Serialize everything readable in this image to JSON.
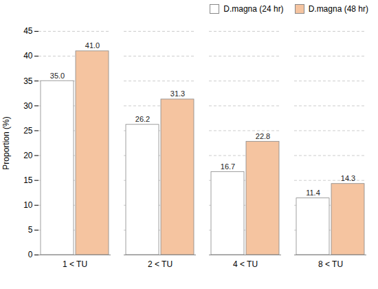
{
  "chart_data": {
    "type": "bar",
    "categories": [
      "1 < TU",
      "2 < TU",
      "4 < TU",
      "8 < TU"
    ],
    "series": [
      {
        "name": "D.magna (24 hr)",
        "color": "white",
        "values": [
          35.0,
          26.2,
          16.7,
          11.4
        ],
        "value_labels": [
          "35.0",
          "26.2",
          "16.7",
          "11.4"
        ]
      },
      {
        "name": "D.magna (48 hr)",
        "color": "#f5c4a0",
        "values": [
          41.0,
          31.3,
          22.8,
          14.3
        ],
        "value_labels": [
          "41.0",
          "31.3",
          "22.8",
          "14.3"
        ]
      }
    ],
    "ylabel": "Proportion (%)",
    "ylim": [
      0,
      45
    ],
    "yticks": [
      0,
      5,
      10,
      15,
      20,
      25,
      30,
      35,
      40,
      45
    ],
    "grid": true,
    "legend": "upper right",
    "data_labels": true
  }
}
